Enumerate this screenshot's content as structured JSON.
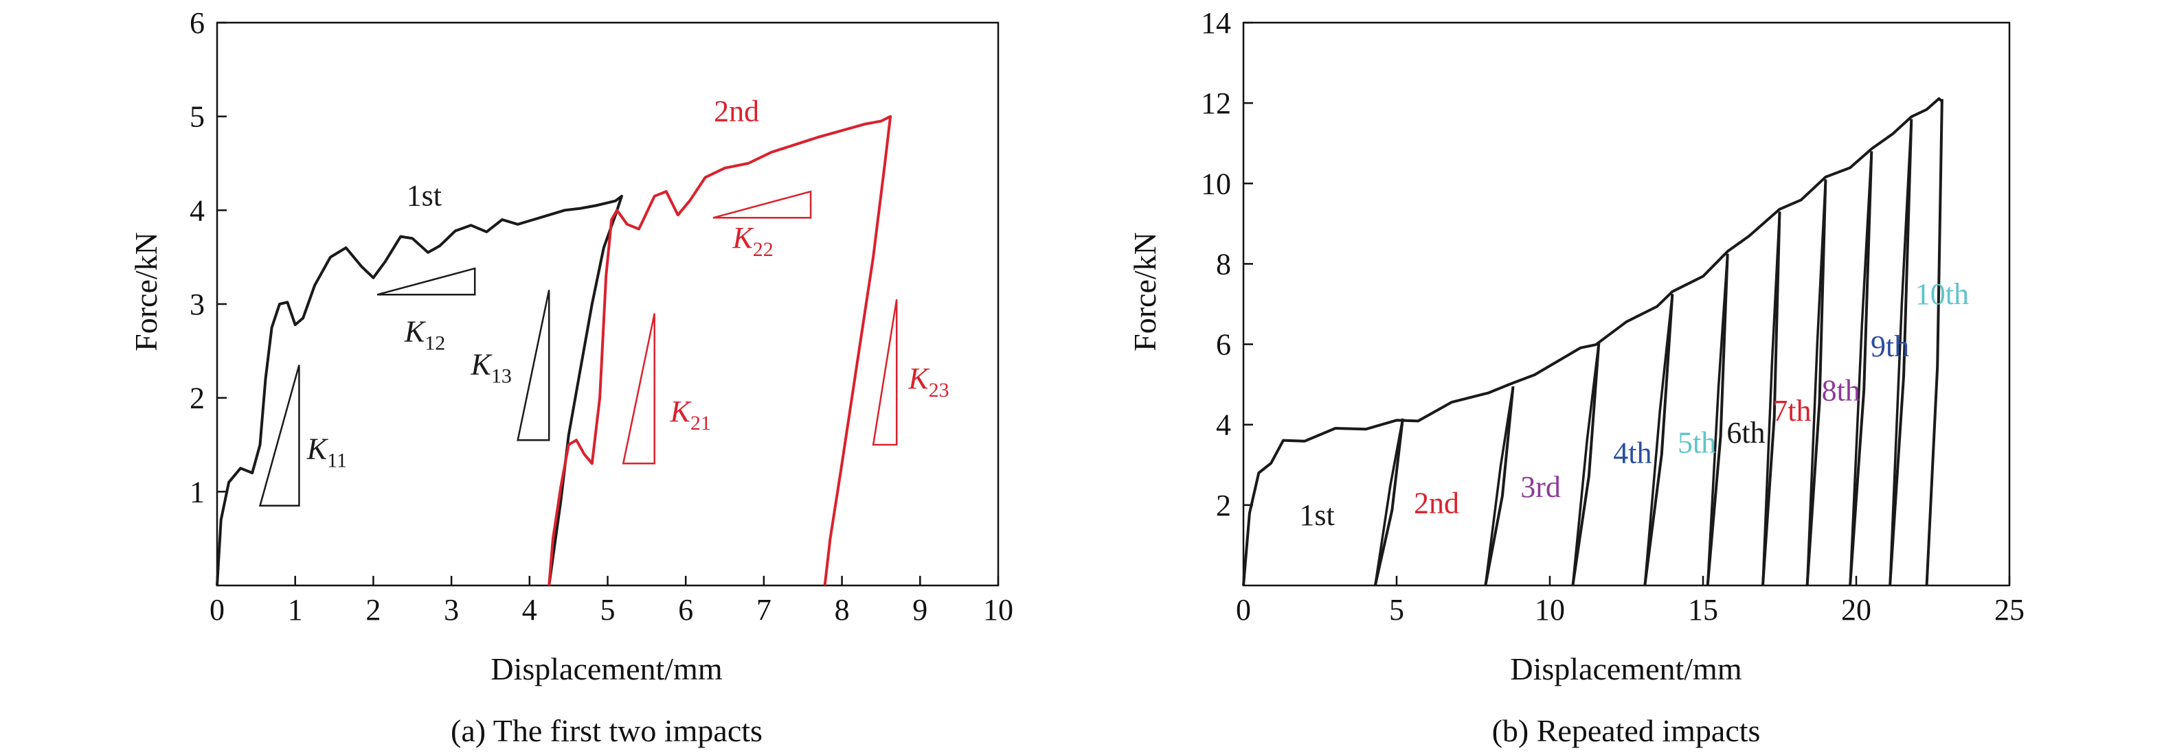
{
  "chart_data": [
    {
      "type": "line",
      "caption": "(a) The first two impacts",
      "xlabel": "Displacement/mm",
      "ylabel": "Force/kN",
      "xlim": [
        0,
        10
      ],
      "ylim": [
        0,
        6
      ],
      "xticks": [
        0,
        1,
        2,
        3,
        4,
        5,
        6,
        7,
        8,
        9,
        10
      ],
      "yticks": [
        1,
        2,
        3,
        4,
        5,
        6
      ],
      "grid": false,
      "series": [
        {
          "name": "1st",
          "color": "#1a1a1a",
          "points": [
            [
              0,
              0
            ],
            [
              0.05,
              0.7
            ],
            [
              0.15,
              1.1
            ],
            [
              0.3,
              1.25
            ],
            [
              0.45,
              1.2
            ],
            [
              0.55,
              1.5
            ],
            [
              0.62,
              2.2
            ],
            [
              0.7,
              2.75
            ],
            [
              0.8,
              3.0
            ],
            [
              0.9,
              3.02
            ],
            [
              1.0,
              2.78
            ],
            [
              1.1,
              2.85
            ],
            [
              1.25,
              3.2
            ],
            [
              1.45,
              3.5
            ],
            [
              1.65,
              3.6
            ],
            [
              1.85,
              3.4
            ],
            [
              2.0,
              3.28
            ],
            [
              2.15,
              3.45
            ],
            [
              2.35,
              3.72
            ],
            [
              2.5,
              3.7
            ],
            [
              2.7,
              3.55
            ],
            [
              2.85,
              3.62
            ],
            [
              3.05,
              3.78
            ],
            [
              3.25,
              3.84
            ],
            [
              3.45,
              3.77
            ],
            [
              3.65,
              3.9
            ],
            [
              3.85,
              3.85
            ],
            [
              4.05,
              3.9
            ],
            [
              4.25,
              3.95
            ],
            [
              4.45,
              4.0
            ],
            [
              4.65,
              4.02
            ],
            [
              4.85,
              4.05
            ],
            [
              5.0,
              4.08
            ],
            [
              5.1,
              4.1
            ],
            [
              5.18,
              4.15
            ],
            [
              5.1,
              3.95
            ],
            [
              4.95,
              3.6
            ],
            [
              4.8,
              3.0
            ],
            [
              4.65,
              2.3
            ],
            [
              4.5,
              1.6
            ],
            [
              4.4,
              0.9
            ],
            [
              4.3,
              0.3
            ],
            [
              4.25,
              0
            ]
          ]
        },
        {
          "name": "2nd",
          "color": "#d9222e",
          "points": [
            [
              4.25,
              0
            ],
            [
              4.3,
              0.5
            ],
            [
              4.4,
              1.05
            ],
            [
              4.5,
              1.5
            ],
            [
              4.6,
              1.55
            ],
            [
              4.7,
              1.4
            ],
            [
              4.8,
              1.3
            ],
            [
              4.9,
              2.0
            ],
            [
              4.98,
              3.3
            ],
            [
              5.05,
              3.9
            ],
            [
              5.12,
              4.0
            ],
            [
              5.25,
              3.85
            ],
            [
              5.4,
              3.8
            ],
            [
              5.6,
              4.15
            ],
            [
              5.75,
              4.2
            ],
            [
              5.9,
              3.95
            ],
            [
              6.05,
              4.1
            ],
            [
              6.25,
              4.35
            ],
            [
              6.5,
              4.45
            ],
            [
              6.8,
              4.5
            ],
            [
              7.1,
              4.62
            ],
            [
              7.4,
              4.7
            ],
            [
              7.7,
              4.78
            ],
            [
              8.0,
              4.85
            ],
            [
              8.3,
              4.92
            ],
            [
              8.5,
              4.95
            ],
            [
              8.62,
              5.0
            ],
            [
              8.55,
              4.5
            ],
            [
              8.4,
              3.5
            ],
            [
              8.2,
              2.4
            ],
            [
              8.0,
              1.3
            ],
            [
              7.85,
              0.5
            ],
            [
              7.78,
              0
            ]
          ]
        }
      ],
      "annotations": [
        {
          "label": "K",
          "sub": "11",
          "color": "#1a1a1a",
          "triangle": [
            [
              0.55,
              0.85
            ],
            [
              1.05,
              0.85
            ],
            [
              1.05,
              2.35
            ]
          ],
          "text_at": [
            1.15,
            1.35
          ]
        },
        {
          "label": "K",
          "sub": "12",
          "color": "#1a1a1a",
          "triangle": [
            [
              2.05,
              3.1
            ],
            [
              3.3,
              3.1
            ],
            [
              3.3,
              3.38
            ]
          ],
          "text_at": [
            2.4,
            2.6
          ]
        },
        {
          "label": "K",
          "sub": "13",
          "color": "#1a1a1a",
          "triangle": [
            [
              3.85,
              1.55
            ],
            [
              4.25,
              1.55
            ],
            [
              4.25,
              3.15
            ]
          ],
          "text_at": [
            3.25,
            2.25
          ]
        },
        {
          "label": "K",
          "sub": "21",
          "color": "#d9222e",
          "triangle": [
            [
              5.2,
              1.3
            ],
            [
              5.6,
              1.3
            ],
            [
              5.6,
              2.9
            ]
          ],
          "text_at": [
            5.8,
            1.75
          ]
        },
        {
          "label": "K",
          "sub": "22",
          "color": "#d9222e",
          "triangle": [
            [
              6.35,
              3.92
            ],
            [
              7.6,
              3.92
            ],
            [
              7.6,
              4.2
            ]
          ],
          "text_at": [
            6.6,
            3.6
          ]
        },
        {
          "label": "K",
          "sub": "23",
          "color": "#d9222e",
          "triangle": [
            [
              8.4,
              1.5
            ],
            [
              8.7,
              1.5
            ],
            [
              8.7,
              3.05
            ]
          ],
          "text_at": [
            8.85,
            2.1
          ]
        }
      ],
      "curve_labels": [
        {
          "text": "1st",
          "color": "#1a1a1a",
          "at": [
            2.65,
            4.05
          ]
        },
        {
          "text": "2nd",
          "color": "#d9222e",
          "at": [
            6.65,
            4.95
          ]
        }
      ]
    },
    {
      "type": "line",
      "caption": "(b) Repeated impacts",
      "xlabel": "Displacement/mm",
      "ylabel": "Force/kN",
      "xlim": [
        0,
        25
      ],
      "ylim": [
        0,
        14
      ],
      "xticks": [
        0,
        5,
        10,
        15,
        20,
        25
      ],
      "yticks": [
        2,
        4,
        6,
        8,
        10,
        12,
        14
      ],
      "grid": false,
      "envelope": [
        [
          0,
          0
        ],
        [
          0.2,
          1.8
        ],
        [
          0.5,
          2.8
        ],
        [
          0.9,
          3.1
        ],
        [
          1.3,
          3.55
        ],
        [
          2.0,
          3.65
        ],
        [
          3.0,
          3.85
        ],
        [
          4.0,
          3.95
        ],
        [
          5.0,
          4.05
        ],
        [
          5.7,
          4.15
        ],
        [
          6.8,
          4.5
        ],
        [
          8.0,
          4.85
        ],
        [
          8.7,
          4.95
        ],
        [
          9.5,
          5.3
        ],
        [
          11.0,
          5.85
        ],
        [
          11.5,
          6.05
        ],
        [
          12.5,
          6.5
        ],
        [
          13.5,
          7.0
        ],
        [
          14.0,
          7.25
        ],
        [
          15.0,
          7.75
        ],
        [
          15.8,
          8.25
        ],
        [
          16.5,
          8.75
        ],
        [
          17.5,
          9.3
        ],
        [
          18.2,
          9.65
        ],
        [
          19.0,
          10.1
        ],
        [
          19.8,
          10.45
        ],
        [
          20.5,
          10.8
        ],
        [
          21.2,
          11.3
        ],
        [
          21.8,
          11.6
        ],
        [
          22.3,
          11.9
        ],
        [
          22.7,
          12.05
        ],
        [
          22.8,
          12.1
        ]
      ],
      "series": [
        {
          "name": "1st",
          "color": "#1a1a1a",
          "unload_top": [
            5.2,
            4.15
          ],
          "unload_bottom": [
            4.3,
            0
          ],
          "reload_bottom": [
            4.3,
            0
          ]
        },
        {
          "name": "2nd",
          "color": "#d9222e",
          "unload_top": [
            8.8,
            4.95
          ],
          "unload_bottom": [
            7.9,
            0
          ],
          "reload_bottom": [
            4.3,
            0
          ]
        },
        {
          "name": "3rd",
          "color": "#8e3a99",
          "unload_top": [
            11.6,
            6.05
          ],
          "unload_bottom": [
            10.75,
            0
          ],
          "reload_bottom": [
            7.9,
            0
          ]
        },
        {
          "name": "4th",
          "color": "#2b4ea0",
          "unload_top": [
            14.0,
            7.25
          ],
          "unload_bottom": [
            13.1,
            0
          ],
          "reload_bottom": [
            10.75,
            0
          ]
        },
        {
          "name": "5th",
          "color": "#5fc4c8",
          "unload_top": [
            15.8,
            8.25
          ],
          "unload_bottom": [
            15.15,
            0
          ],
          "reload_bottom": [
            13.1,
            0
          ]
        },
        {
          "name": "6th",
          "color": "#1a1a1a",
          "unload_top": [
            17.5,
            9.3
          ],
          "unload_bottom": [
            16.95,
            0
          ],
          "reload_bottom": [
            15.15,
            0
          ]
        },
        {
          "name": "7th",
          "color": "#d9222e",
          "unload_top": [
            19.0,
            10.1
          ],
          "unload_bottom": [
            18.4,
            0
          ],
          "reload_bottom": [
            16.95,
            0
          ]
        },
        {
          "name": "8th",
          "color": "#8e3a99",
          "unload_top": [
            20.5,
            10.8
          ],
          "unload_bottom": [
            19.8,
            0
          ],
          "reload_bottom": [
            18.4,
            0
          ]
        },
        {
          "name": "9th",
          "color": "#2b4ea0",
          "unload_top": [
            21.8,
            11.6
          ],
          "unload_bottom": [
            21.1,
            0
          ],
          "reload_bottom": [
            19.8,
            0
          ]
        },
        {
          "name": "10th",
          "color": "#5fc4c8",
          "unload_top": [
            22.8,
            12.1
          ],
          "unload_bottom": [
            22.3,
            0
          ],
          "reload_bottom": [
            21.1,
            0
          ]
        }
      ],
      "curve_labels": [
        {
          "text": "1st",
          "color": "#1a1a1a",
          "at": [
            2.4,
            1.5
          ]
        },
        {
          "text": "2nd",
          "color": "#d9222e",
          "at": [
            6.3,
            1.8
          ]
        },
        {
          "text": "3rd",
          "color": "#8e3a99",
          "at": [
            9.7,
            2.2
          ]
        },
        {
          "text": "4th",
          "color": "#2b4ea0",
          "at": [
            12.7,
            3.05
          ]
        },
        {
          "text": "5th",
          "color": "#5fc4c8",
          "at": [
            14.8,
            3.3
          ]
        },
        {
          "text": "6th",
          "color": "#1a1a1a",
          "at": [
            16.4,
            3.55
          ]
        },
        {
          "text": "7th",
          "color": "#d9222e",
          "at": [
            17.9,
            4.1
          ]
        },
        {
          "text": "8th",
          "color": "#8e3a99",
          "at": [
            19.5,
            4.6
          ]
        },
        {
          "text": "9th",
          "color": "#2b4ea0",
          "at": [
            21.1,
            5.7
          ]
        },
        {
          "text": "10th",
          "color": "#5fc4c8",
          "at": [
            22.8,
            7.0
          ]
        }
      ]
    }
  ]
}
